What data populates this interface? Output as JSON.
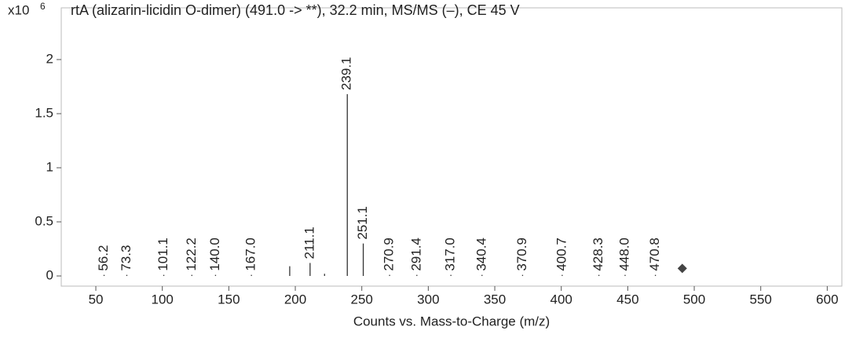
{
  "chart_data": {
    "type": "spectrum",
    "title": "rtA (alizarin-licidin O-dimer) (491.0 -> **), 32.2 min, MS/MS (–), CE 45 V",
    "y_unit": "x10",
    "y_unit_exp": "6",
    "xlabel": "Counts vs. Mass-to-Charge (m/z)",
    "x": [
      56.2,
      73.3,
      101.1,
      122.2,
      140.0,
      167.0,
      195.8,
      211.1,
      222.0,
      239.1,
      251.1,
      270.9,
      291.4,
      317.0,
      340.4,
      370.9,
      400.7,
      428.3,
      448.0,
      470.8
    ],
    "values": [
      0.01,
      0.01,
      0.01,
      0.01,
      0.01,
      0.01,
      0.09,
      0.12,
      0.02,
      1.68,
      0.3,
      0.01,
      0.01,
      0.01,
      0.01,
      0.01,
      0.01,
      0.01,
      0.01,
      0.01
    ],
    "peak_labels": [
      "56.2",
      "73.3",
      "101.1",
      "122.2",
      "140.0",
      "167.0",
      null,
      "211.1",
      null,
      "239.1",
      "251.1",
      "270.9",
      "291.4",
      "317.0",
      "340.4",
      "370.9",
      "400.7",
      "428.3",
      "448.0",
      "470.8"
    ],
    "color": "#333333",
    "precursor": {
      "x": 491.0,
      "value": 0.07,
      "color": "#444444"
    },
    "xlim": [
      24,
      611
    ],
    "ylim": [
      -0.094,
      2.478
    ],
    "xticks": [
      50,
      100,
      150,
      200,
      250,
      300,
      350,
      400,
      450,
      500,
      550,
      600
    ],
    "yticks": [
      0,
      0.5,
      1,
      1.5,
      2
    ]
  }
}
